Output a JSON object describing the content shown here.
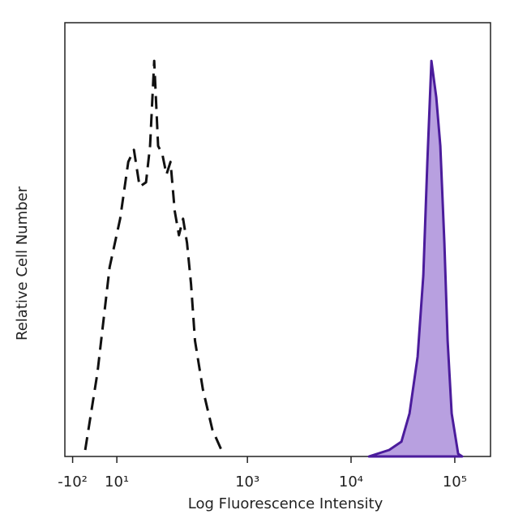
{
  "chart_data": {
    "type": "histogram-overlay",
    "x_label": "Log Fluorescence Intensity",
    "y_label": "Relative Cell Number",
    "xscale": "biexponential",
    "xlim": [
      -126,
      221000
    ],
    "ylim": [
      0,
      100
    ],
    "xticks": [
      {
        "value": -100,
        "label": "-10²"
      },
      {
        "value": 10,
        "label": "10¹"
      },
      {
        "value": 1000,
        "label": "10³"
      },
      {
        "value": 10000,
        "label": "10⁴"
      },
      {
        "value": 100000,
        "label": "10⁵"
      }
    ],
    "series": [
      {
        "color": "#111111",
        "style": "dashed",
        "x": [
          -64,
          -33.6,
          -6,
          17.5,
          36,
          49.8,
          64.3,
          82,
          94,
          107,
          120,
          135,
          151,
          168,
          187,
          208,
          230,
          253,
          278,
          305,
          366,
          455,
          580
        ],
        "values": [
          1.5,
          19.3,
          43.6,
          54.8,
          67.9,
          70.7,
          62.2,
          63.2,
          71.6,
          91.2,
          71.6,
          69.7,
          65.0,
          67.9,
          56.6,
          51.0,
          54.8,
          49.2,
          39.8,
          26.7,
          15.5,
          6.2,
          0.6
        ]
      },
      {
        "color": "#4b1c9c",
        "fill": "#b8a0e0",
        "style": "solid",
        "x": [
          14900,
          23300,
          30600,
          36600,
          43800,
          49700,
          54400,
          59500,
          66300,
          72600,
          79400,
          85300,
          93300,
          107800,
          117900
        ],
        "values": [
          0,
          1.5,
          3.4,
          9.9,
          23,
          41.7,
          67.9,
          91.2,
          82.8,
          71.6,
          49.2,
          26.7,
          9.9,
          0.6,
          0
        ]
      }
    ]
  }
}
